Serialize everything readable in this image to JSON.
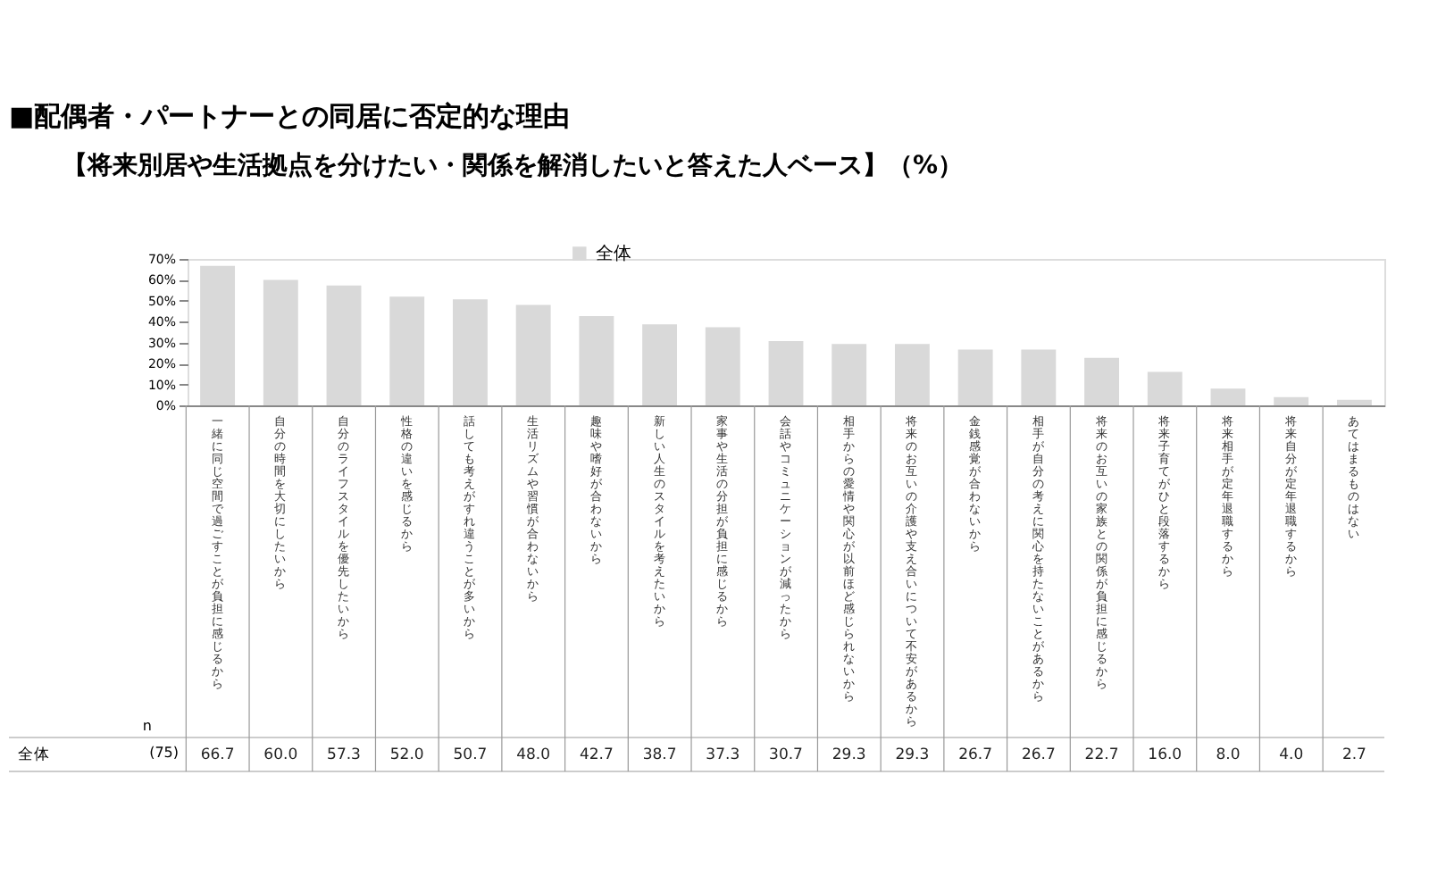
{
  "chart_data": {
    "type": "bar",
    "title": "■配偶者・パートナーとの同居に否定的な理由",
    "subtitle": "【将来別居や生活拠点を分けたい・関係を解消したいと答えた人ベース】（%）",
    "categories": [
      "一緒に同じ空間で過ごすことが負担に感じるから",
      "自分の時間を大切にしたいから",
      "自分のライフスタイルを優先したいから",
      "性格の違いを感じるから",
      "話しても考えがすれ違うことが多いから",
      "生活リズムや習慣が合わないから",
      "趣味や嗜好が合わないから",
      "新しい人生のスタイルを考えたいから",
      "家事や生活の分担が負担に感じるから",
      "会話やコミュニケーションが減ったから",
      "相手からの愛情や関心が以前ほど感じられないから",
      "将来のお互いの介護や支え合いについて不安があるから",
      "金銭感覚が合わないから",
      "相手が自分の考えに関心を持たないことがあるから",
      "将来のお互いの家族との関係が負担に感じるから",
      "将来子育てがひと段落するから",
      "将来相手が定年退職するから",
      "将来自分が定年退職するから",
      "あてはまるものはない"
    ],
    "series": [
      {
        "name": "全体",
        "color": "#d9d9d9",
        "values": [
          66.7,
          60.0,
          57.3,
          52.0,
          50.7,
          48.0,
          42.7,
          38.7,
          37.3,
          30.7,
          29.3,
          29.3,
          26.7,
          26.7,
          22.7,
          16.0,
          8.0,
          4.0,
          2.7
        ],
        "value_labels": [
          "66.7",
          "60.0",
          "57.3",
          "52.0",
          "50.7",
          "48.0",
          "42.7",
          "38.7",
          "37.3",
          "30.7",
          "29.3",
          "29.3",
          "26.7",
          "26.7",
          "22.7",
          "16.0",
          "8.0",
          "4.0",
          "2.7"
        ]
      }
    ],
    "ylim": [
      0,
      70
    ],
    "yticks": [
      {
        "value": 0,
        "label": "0%"
      },
      {
        "value": 10,
        "label": "10%"
      },
      {
        "value": 20,
        "label": "20%"
      },
      {
        "value": 30,
        "label": "30%"
      },
      {
        "value": 40,
        "label": "40%"
      },
      {
        "value": 50,
        "label": "50%"
      },
      {
        "value": 60,
        "label": "60%"
      },
      {
        "value": 70,
        "label": "70%"
      }
    ],
    "grid": false,
    "legend": "top",
    "annotations": [
      "n",
      "(75)"
    ]
  }
}
